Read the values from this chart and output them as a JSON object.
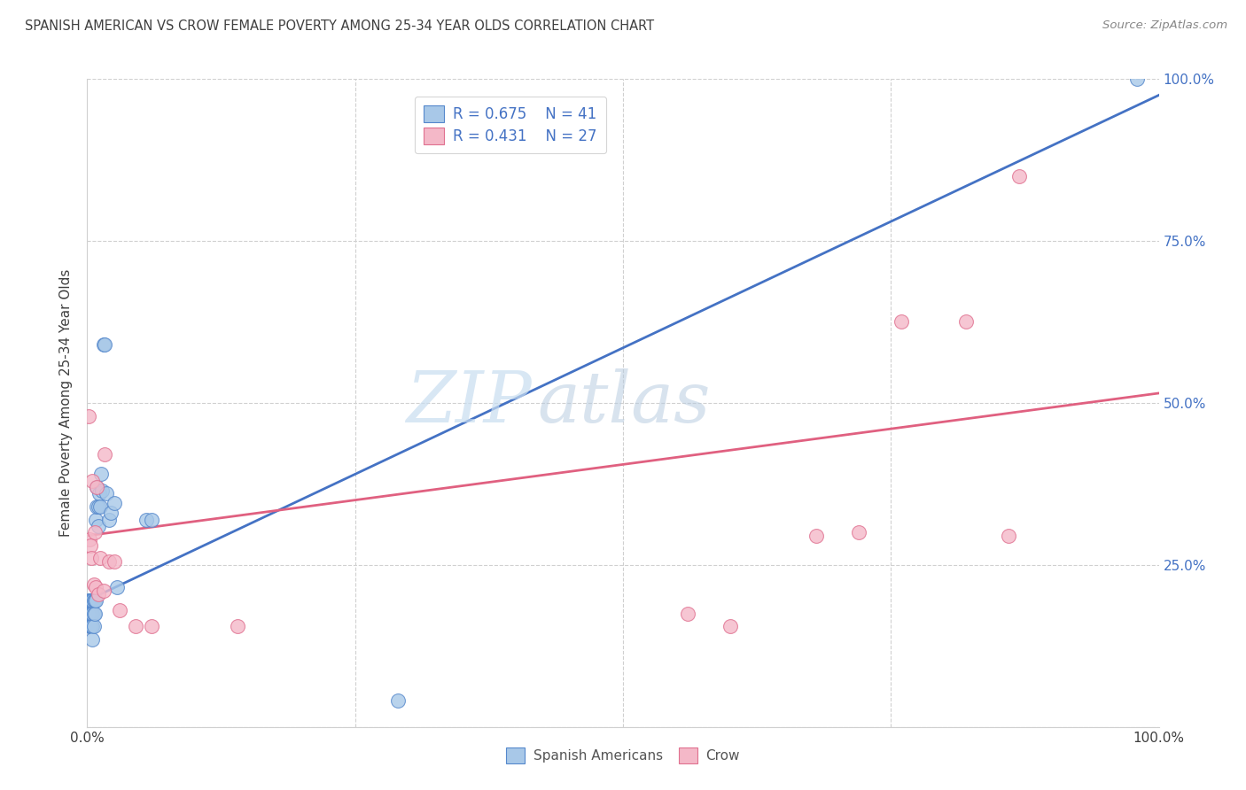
{
  "title": "SPANISH AMERICAN VS CROW FEMALE POVERTY AMONG 25-34 YEAR OLDS CORRELATION CHART",
  "source": "Source: ZipAtlas.com",
  "ylabel": "Female Poverty Among 25-34 Year Olds",
  "xlim": [
    0.0,
    1.0
  ],
  "ylim": [
    0.0,
    1.0
  ],
  "watermark_zip": "ZIP",
  "watermark_atlas": "atlas",
  "legend_labels": [
    "Spanish Americans",
    "Crow"
  ],
  "legend_R": [
    "R = 0.675",
    "R = 0.431"
  ],
  "legend_N": [
    "N = 41",
    "N = 27"
  ],
  "blue_fill": "#a8c8e8",
  "pink_fill": "#f4b8c8",
  "blue_edge": "#5588cc",
  "pink_edge": "#e07090",
  "blue_line": "#4472c4",
  "pink_line": "#e06080",
  "title_color": "#404040",
  "source_color": "#888888",
  "axis_color": "#404040",
  "right_label_color": "#4472c4",
  "grid_color": "#d0d0d0",
  "spanish_x": [
    0.001,
    0.001,
    0.002,
    0.002,
    0.002,
    0.003,
    0.003,
    0.003,
    0.004,
    0.004,
    0.004,
    0.005,
    0.005,
    0.005,
    0.005,
    0.006,
    0.006,
    0.006,
    0.007,
    0.007,
    0.008,
    0.008,
    0.009,
    0.009,
    0.01,
    0.01,
    0.011,
    0.012,
    0.013,
    0.014,
    0.015,
    0.016,
    0.018,
    0.02,
    0.022,
    0.025,
    0.028,
    0.055,
    0.06,
    0.29,
    0.98
  ],
  "spanish_y": [
    0.195,
    0.175,
    0.195,
    0.175,
    0.155,
    0.195,
    0.175,
    0.155,
    0.195,
    0.175,
    0.155,
    0.195,
    0.175,
    0.155,
    0.135,
    0.195,
    0.175,
    0.155,
    0.195,
    0.175,
    0.32,
    0.195,
    0.37,
    0.34,
    0.34,
    0.31,
    0.36,
    0.34,
    0.39,
    0.365,
    0.59,
    0.59,
    0.36,
    0.32,
    0.33,
    0.345,
    0.215,
    0.32,
    0.32,
    0.04,
    1.0
  ],
  "crow_x": [
    0.001,
    0.002,
    0.003,
    0.004,
    0.005,
    0.006,
    0.007,
    0.008,
    0.009,
    0.01,
    0.012,
    0.015,
    0.016,
    0.02,
    0.025,
    0.03,
    0.045,
    0.06,
    0.14,
    0.56,
    0.6,
    0.68,
    0.72,
    0.76,
    0.82,
    0.86,
    0.87
  ],
  "crow_y": [
    0.48,
    0.29,
    0.28,
    0.26,
    0.38,
    0.22,
    0.3,
    0.215,
    0.37,
    0.205,
    0.26,
    0.21,
    0.42,
    0.255,
    0.255,
    0.18,
    0.155,
    0.155,
    0.155,
    0.175,
    0.155,
    0.295,
    0.3,
    0.625,
    0.625,
    0.295,
    0.85
  ],
  "blue_line_x": [
    0.0,
    1.0
  ],
  "blue_line_y": [
    0.195,
    0.975
  ],
  "pink_line_x": [
    0.0,
    1.0
  ],
  "pink_line_y": [
    0.295,
    0.515
  ]
}
